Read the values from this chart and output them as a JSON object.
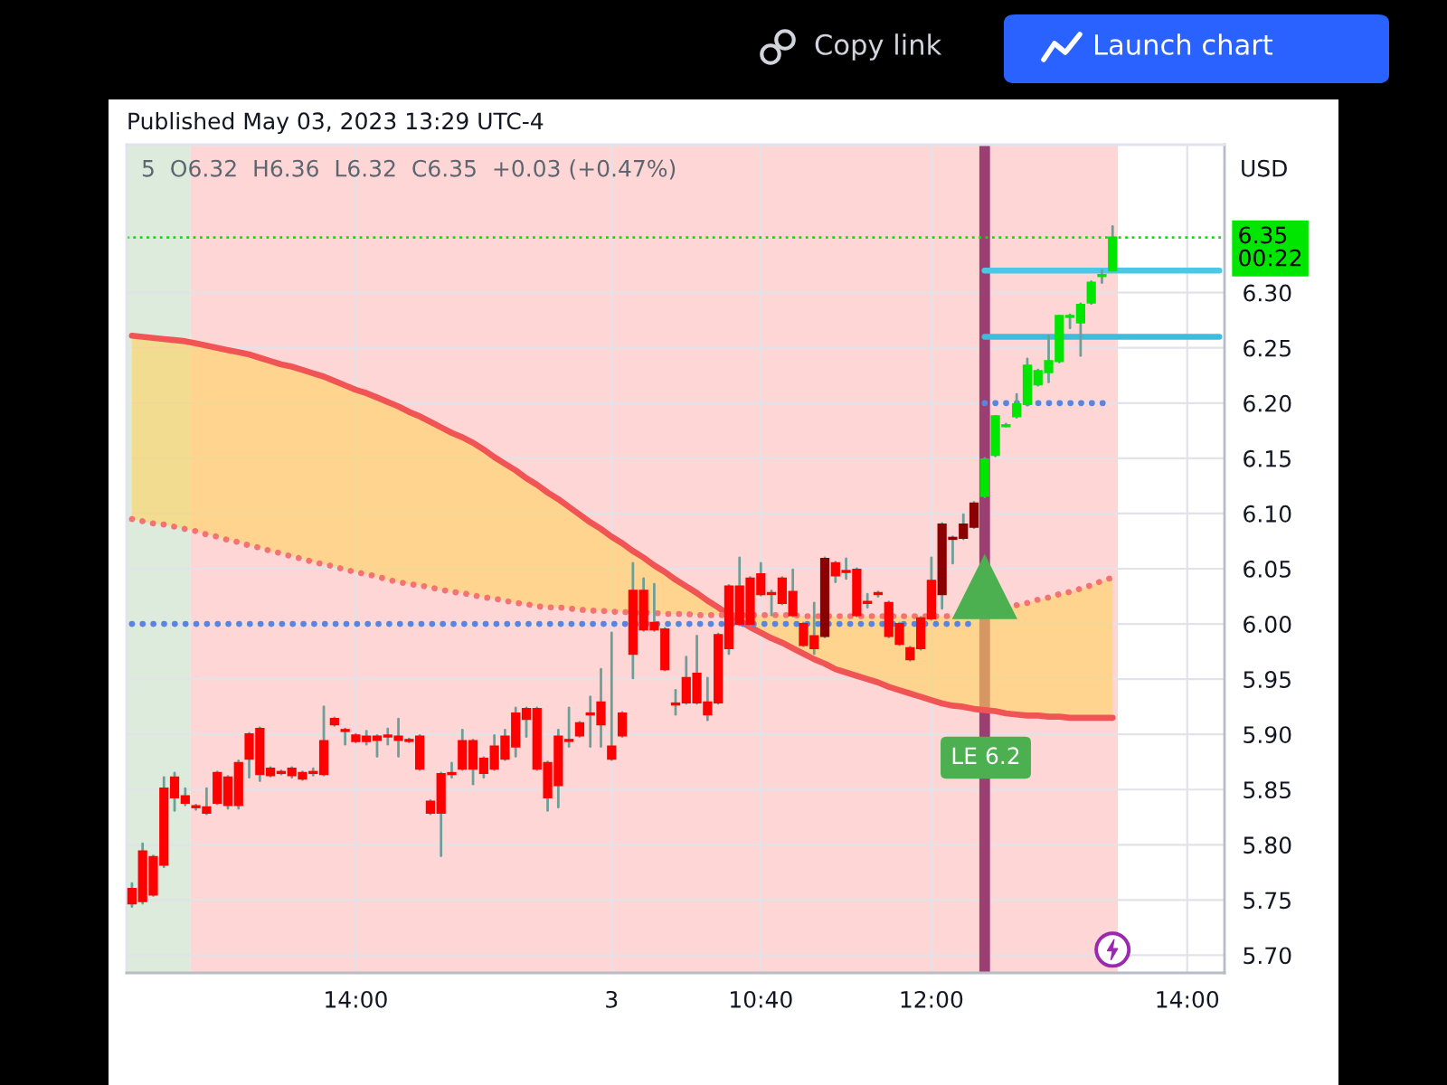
{
  "chart_data": {
    "type": "candlestick",
    "title": "Published May 03, 2023 13:29 UTC-4",
    "subtitle": "5  O6.32  H6.36  L6.32  C6.35  +0.03 (+0.47%)",
    "ylabel": "USD",
    "categories": [
      null,
      null,
      null,
      null,
      null,
      null,
      null,
      null,
      null,
      null,
      null,
      null,
      null,
      null,
      null,
      null,
      null,
      null,
      null,
      null,
      null,
      "14:00",
      null,
      null,
      null,
      null,
      null,
      null,
      null,
      null,
      null,
      null,
      null,
      null,
      null,
      null,
      null,
      null,
      null,
      null,
      null,
      null,
      null,
      null,
      null,
      "3",
      null,
      null,
      null,
      null,
      null,
      null,
      null,
      null,
      null,
      null,
      null,
      null,
      null,
      "10:40",
      null,
      null,
      null,
      null,
      null,
      null,
      null,
      null,
      null,
      null,
      null,
      null,
      null,
      null,
      null,
      "12:00",
      null,
      null,
      null,
      null,
      null,
      null,
      null,
      null,
      null,
      null,
      null,
      null,
      null,
      null,
      null,
      null,
      null,
      null,
      null,
      null,
      null,
      null,
      null,
      "14:00",
      null,
      null,
      null
    ],
    "ohlc": [
      [
        5.76,
        5.765,
        5.744,
        5.747
      ],
      [
        5.794,
        5.801,
        5.747,
        5.749
      ],
      [
        5.789,
        5.79,
        5.754,
        5.755
      ],
      [
        5.851,
        5.861,
        5.78,
        5.782
      ],
      [
        5.861,
        5.865,
        5.831,
        5.843
      ],
      [
        5.844,
        5.851,
        5.836,
        5.838
      ],
      [
        5.835,
        5.836,
        5.832,
        5.834
      ],
      [
        5.834,
        5.851,
        5.828,
        5.829
      ],
      [
        5.865,
        5.866,
        5.837,
        5.838
      ],
      [
        5.861,
        5.862,
        5.833,
        5.836
      ],
      [
        5.874,
        5.876,
        5.833,
        5.836
      ],
      [
        5.9,
        5.901,
        5.861,
        5.878
      ],
      [
        5.905,
        5.906,
        5.858,
        5.864
      ],
      [
        5.869,
        5.87,
        5.862,
        5.863
      ],
      [
        5.866,
        5.867,
        5.864,
        5.865
      ],
      [
        5.869,
        5.87,
        5.861,
        5.863
      ],
      [
        5.865,
        5.866,
        5.859,
        5.86
      ],
      [
        5.866,
        5.869,
        5.863,
        5.865
      ],
      [
        5.894,
        5.925,
        5.863,
        5.864
      ],
      [
        5.914,
        5.915,
        5.908,
        5.909
      ],
      [
        5.904,
        5.905,
        5.891,
        5.903
      ],
      [
        5.899,
        5.9,
        5.893,
        5.894
      ],
      [
        5.898,
        5.903,
        5.891,
        5.894
      ],
      [
        5.898,
        5.899,
        5.88,
        5.895
      ],
      [
        5.899,
        5.905,
        5.891,
        5.898
      ],
      [
        5.898,
        5.914,
        5.88,
        5.895
      ],
      [
        5.895,
        5.896,
        5.893,
        5.894
      ],
      [
        5.898,
        5.899,
        5.868,
        5.869
      ],
      [
        5.839,
        5.84,
        5.828,
        5.829
      ],
      [
        5.864,
        5.865,
        5.79,
        5.829
      ],
      [
        5.865,
        5.874,
        5.861,
        5.864
      ],
      [
        5.894,
        5.904,
        5.868,
        5.869
      ],
      [
        5.894,
        5.895,
        5.855,
        5.869
      ],
      [
        5.878,
        5.879,
        5.861,
        5.865
      ],
      [
        5.889,
        5.899,
        5.868,
        5.869
      ],
      [
        5.898,
        5.904,
        5.877,
        5.878
      ],
      [
        5.919,
        5.924,
        5.88,
        5.889
      ],
      [
        5.923,
        5.924,
        5.898,
        5.914
      ],
      [
        5.923,
        5.924,
        5.868,
        5.869
      ],
      [
        5.874,
        5.875,
        5.831,
        5.843
      ],
      [
        5.898,
        5.904,
        5.834,
        5.854
      ],
      [
        5.895,
        5.924,
        5.889,
        5.894
      ],
      [
        5.91,
        5.911,
        5.898,
        5.899
      ],
      [
        5.919,
        5.934,
        5.889,
        5.918
      ],
      [
        5.929,
        5.959,
        5.889,
        5.909
      ],
      [
        5.889,
        5.992,
        5.877,
        5.878
      ],
      [
        5.919,
        5.92,
        5.898,
        5.899
      ],
      [
        6.03,
        6.055,
        5.951,
        5.973
      ],
      [
        6.03,
        6.041,
        5.994,
        5.995
      ],
      [
        6.001,
        6.036,
        5.994,
        5.995
      ],
      [
        5.995,
        5.996,
        5.958,
        5.959
      ],
      [
        5.928,
        5.94,
        5.918,
        5.927
      ],
      [
        5.951,
        5.97,
        5.928,
        5.929
      ],
      [
        5.955,
        5.989,
        5.928,
        5.929
      ],
      [
        5.929,
        5.951,
        5.913,
        5.918
      ],
      [
        5.99,
        5.991,
        5.928,
        5.929
      ],
      [
        6.034,
        6.035,
        5.973,
        5.978
      ],
      [
        6.034,
        6.06,
        5.999,
        6.0
      ],
      [
        6.041,
        6.042,
        5.999,
        6.0
      ],
      [
        6.045,
        6.055,
        6.026,
        6.027
      ],
      [
        6.028,
        6.03,
        6.008,
        6.027
      ],
      [
        6.041,
        6.042,
        6.018,
        6.019
      ],
      [
        6.029,
        6.049,
        6.007,
        6.008
      ],
      [
        6.0,
        6.001,
        5.98,
        5.981
      ],
      [
        5.989,
        6.019,
        5.973,
        5.978
      ],
      [
        5.989,
        6.06,
        5.988,
        6.059
      ],
      [
        6.055,
        6.056,
        6.038,
        6.044
      ],
      [
        6.048,
        6.059,
        6.041,
        6.047
      ],
      [
        6.049,
        6.05,
        6.007,
        6.008
      ],
      [
        6.02,
        6.027,
        6.015,
        6.019
      ],
      [
        6.028,
        6.029,
        6.025,
        6.027
      ],
      [
        6.019,
        6.02,
        5.988,
        5.989
      ],
      [
        6.0,
        6.001,
        5.981,
        5.982
      ],
      [
        5.978,
        5.979,
        5.967,
        5.968
      ],
      [
        6.005,
        6.006,
        5.977,
        5.978
      ],
      [
        6.039,
        6.06,
        6.004,
        6.005
      ],
      [
        6.027,
        6.091,
        6.014,
        6.09
      ],
      [
        6.077,
        6.079,
        6.055,
        6.078
      ],
      [
        6.078,
        6.099,
        6.077,
        6.09
      ],
      [
        6.088,
        6.11,
        6.087,
        6.109
      ],
      [
        6.116,
        6.15,
        6.115,
        6.149
      ],
      [
        6.153,
        6.188,
        6.152,
        6.188
      ],
      [
        6.179,
        6.181,
        6.179,
        6.18
      ],
      [
        6.188,
        6.208,
        6.187,
        6.199
      ],
      [
        6.199,
        6.24,
        6.198,
        6.234
      ],
      [
        6.217,
        6.23,
        6.216,
        6.229
      ],
      [
        6.228,
        6.261,
        6.219,
        6.238
      ],
      [
        6.238,
        6.279,
        6.237,
        6.279
      ],
      [
        6.278,
        6.28,
        6.268,
        6.279
      ],
      [
        6.273,
        6.29,
        6.243,
        6.289
      ],
      [
        6.291,
        6.31,
        6.29,
        6.309
      ],
      [
        6.315,
        6.32,
        6.309,
        6.316
      ],
      [
        6.32,
        6.36,
        6.32,
        6.35
      ],
      null,
      null,
      null,
      null,
      null,
      null,
      null,
      null,
      null,
      null
    ],
    "colors": [
      "#ff0000",
      "#ff0000",
      "#ff0000",
      "#ff0000",
      "#ff0000",
      "#ff0000",
      "#ff0000",
      "#ff0000",
      "#ff0000",
      "#ff0000",
      "#ff0000",
      "#ff0000",
      "#ff0000",
      "#ff0000",
      "#ff0000",
      "#ff0000",
      "#ff0000",
      "#ff0000",
      "#ff0000",
      "#ff0000",
      "#ff0000",
      "#ff0000",
      "#ff0000",
      "#ff0000",
      "#ff0000",
      "#ff0000",
      "#ff0000",
      "#ff0000",
      "#ff0000",
      "#ff0000",
      "#ff0000",
      "#ff0000",
      "#ff0000",
      "#ff0000",
      "#ff0000",
      "#ff0000",
      "#ff0000",
      "#ff0000",
      "#ff0000",
      "#ff0000",
      "#ff0000",
      "#ff0000",
      "#ff0000",
      "#ff0000",
      "#ff0000",
      "#ff0000",
      "#ff0000",
      "#ff0000",
      "#ff0000",
      "#ff0000",
      "#ff0000",
      "#ff0000",
      "#ff0000",
      "#ff0000",
      "#ff0000",
      "#ff0000",
      "#ff0000",
      "#ff0000",
      "#ff0000",
      "#ff0000",
      "#ff0000",
      "#ff0000",
      "#ff0000",
      "#ff0000",
      "#ff0000",
      "#8b0000",
      "#ff0000",
      "#ff0000",
      "#ff0000",
      "#ff0000",
      "#ff0000",
      "#ff0000",
      "#ff0000",
      "#ff0000",
      "#ff0000",
      "#ff0000",
      "#8b0000",
      "#8b0000",
      "#8b0000",
      "#8b0000",
      "#00e600",
      "#00e600",
      "#00e600",
      "#00e600",
      "#00e600",
      "#00e600",
      "#00e600",
      "#00e600",
      "#00e600",
      "#00e600",
      "#00e600",
      "#00e600",
      "#00e600",
      null,
      null,
      null,
      null,
      null,
      null,
      null,
      null,
      null,
      null
    ],
    "series": [
      {
        "type": "line",
        "color": "#f05454",
        "values": [
          6.261,
          6.26,
          6.259,
          6.258,
          6.257,
          6.256,
          6.254,
          6.252,
          6.25,
          6.248,
          6.246,
          6.244,
          6.241,
          6.238,
          6.235,
          6.233,
          6.23,
          6.227,
          6.224,
          6.22,
          6.216,
          6.212,
          6.209,
          6.205,
          6.201,
          6.197,
          6.192,
          6.188,
          6.183,
          6.178,
          6.173,
          6.169,
          6.164,
          6.158,
          6.151,
          6.145,
          6.139,
          6.132,
          6.126,
          6.119,
          6.113,
          6.106,
          6.099,
          6.092,
          6.086,
          6.079,
          6.073,
          6.066,
          6.06,
          6.053,
          6.047,
          6.04,
          6.034,
          6.028,
          6.021,
          6.015,
          6.008,
          6.003,
          5.997,
          5.992,
          5.987,
          5.983,
          5.978,
          5.973,
          5.968,
          5.964,
          5.959,
          5.956,
          5.953,
          5.95,
          5.947,
          5.943,
          5.94,
          5.937,
          5.934,
          5.931,
          5.928,
          5.926,
          5.925,
          5.923,
          5.922,
          5.921,
          5.919,
          5.918,
          5.917,
          5.917,
          5.916,
          5.916,
          5.915,
          5.915,
          5.915,
          5.915,
          5.915,
          null,
          null,
          null,
          null,
          null,
          null,
          null,
          null,
          null,
          null
        ],
        "upper": [
          6.261,
          6.26,
          6.259,
          6.258,
          6.257,
          6.256,
          6.254,
          6.252,
          6.25,
          6.248,
          6.246,
          6.244,
          6.241,
          6.238,
          6.235,
          6.233,
          6.23,
          6.227,
          6.224,
          6.22,
          6.216,
          6.212,
          6.209,
          6.205,
          6.201,
          6.197,
          6.192,
          6.188,
          6.183,
          6.178,
          6.173,
          6.169,
          6.164,
          6.158,
          6.151,
          6.145,
          6.139,
          6.132,
          6.126,
          6.119,
          6.113,
          6.106,
          6.099,
          6.092,
          6.086,
          6.079,
          6.073,
          6.066,
          6.06,
          6.053,
          6.047,
          6.04,
          6.034,
          6.028,
          6.021,
          6.015,
          6.008,
          6.003,
          5.997,
          5.992,
          5.987,
          5.983,
          5.978,
          5.973,
          5.968,
          5.964,
          5.959,
          5.956,
          5.953,
          5.95,
          5.947,
          5.943,
          5.94,
          5.937,
          5.934,
          5.931,
          5.928,
          5.926,
          5.925,
          5.923,
          5.922,
          5.921,
          5.919,
          5.918,
          5.917,
          5.917,
          5.916,
          5.916,
          5.915,
          5.915,
          5.915,
          5.915,
          5.915,
          null,
          null,
          null,
          null,
          null,
          null,
          null,
          null,
          null,
          null
        ],
        "lower": [
          6.095,
          6.093,
          6.091,
          6.09,
          6.088,
          6.086,
          6.084,
          6.081,
          6.079,
          6.076,
          6.074,
          6.071,
          6.069,
          6.066,
          6.064,
          6.061,
          6.059,
          6.056,
          6.054,
          6.052,
          6.049,
          6.047,
          6.045,
          6.043,
          6.04,
          6.038,
          6.036,
          6.035,
          6.033,
          6.031,
          6.029,
          6.028,
          6.026,
          6.024,
          6.023,
          6.021,
          6.019,
          6.018,
          6.016,
          6.015,
          6.015,
          6.014,
          6.013,
          6.012,
          6.012,
          6.011,
          6.011,
          6.01,
          6.01,
          6.01,
          6.009,
          6.009,
          6.009,
          6.008,
          6.008,
          6.008,
          6.008,
          6.008,
          6.008,
          6.008,
          6.008,
          6.008,
          6.008,
          6.007,
          6.007,
          6.007,
          6.007,
          6.007,
          6.007,
          6.007,
          6.007,
          6.007,
          6.007,
          6.007,
          6.007,
          6.007,
          6.007,
          6.007,
          6.007,
          6.007,
          6.009,
          6.011,
          6.014,
          6.017,
          6.019,
          6.022,
          6.024,
          6.027,
          6.029,
          6.032,
          6.035,
          6.039,
          6.042,
          null,
          null,
          null,
          null,
          null,
          null,
          null,
          null,
          null,
          null
        ]
      },
      {
        "type": "line",
        "line_style": "dotted",
        "color": "#f47272",
        "values": [
          6.095,
          6.093,
          6.091,
          6.09,
          6.088,
          6.086,
          6.084,
          6.081,
          6.079,
          6.076,
          6.074,
          6.071,
          6.069,
          6.066,
          6.064,
          6.061,
          6.059,
          6.056,
          6.054,
          6.052,
          6.049,
          6.047,
          6.045,
          6.043,
          6.04,
          6.038,
          6.036,
          6.035,
          6.033,
          6.031,
          6.029,
          6.028,
          6.026,
          6.024,
          6.023,
          6.021,
          6.019,
          6.018,
          6.016,
          6.015,
          6.015,
          6.014,
          6.013,
          6.012,
          6.012,
          6.011,
          6.011,
          6.01,
          6.01,
          6.01,
          6.009,
          6.009,
          6.009,
          6.008,
          6.008,
          6.008,
          6.008,
          6.008,
          6.008,
          6.008,
          6.008,
          6.008,
          6.008,
          6.007,
          6.007,
          6.007,
          6.007,
          6.007,
          6.007,
          6.007,
          6.007,
          6.007,
          6.007,
          6.007,
          6.007,
          6.007,
          6.007,
          6.007,
          null,
          null,
          null,
          null,
          null,
          6.017,
          6.019,
          6.022,
          6.024,
          6.027,
          6.029,
          6.032,
          6.035,
          6.039,
          6.042,
          null,
          null,
          null,
          null,
          null,
          null,
          null,
          null,
          null,
          null
        ]
      },
      {
        "type": "line",
        "line_style": "dotted",
        "color": "#5b84e0",
        "values": [
          6.0,
          6.0,
          6.0,
          6.0,
          6.0,
          6.0,
          6.0,
          6.0,
          6.0,
          6.0,
          6.0,
          6.0,
          6.0,
          6.0,
          6.0,
          6.0,
          6.0,
          6.0,
          6.0,
          6.0,
          6.0,
          6.0,
          6.0,
          6.0,
          6.0,
          6.0,
          6.0,
          6.0,
          6.0,
          6.0,
          6.0,
          6.0,
          6.0,
          6.0,
          6.0,
          6.0,
          6.0,
          6.0,
          6.0,
          6.0,
          6.0,
          6.0,
          6.0,
          6.0,
          6.0,
          6.0,
          6.0,
          6.0,
          6.0,
          6.0,
          6.0,
          6.0,
          6.0,
          6.0,
          6.0,
          6.0,
          6.0,
          6.0,
          6.0,
          6.0,
          6.0,
          6.0,
          6.0,
          6.0,
          6.0,
          6.0,
          6.0,
          6.0,
          6.0,
          6.0,
          6.0,
          6.0,
          6.0,
          6.0,
          6.0,
          6.0,
          6.0,
          6.0,
          6.0,
          6.0,
          null,
          null,
          null,
          null,
          null,
          null,
          null,
          null,
          null,
          null,
          null,
          null,
          null,
          null,
          null,
          null,
          null,
          null,
          null,
          null,
          null,
          null,
          null
        ]
      },
      {
        "type": "line",
        "line_style": "dotted",
        "color": "#5b84e0",
        "values": [
          null,
          null,
          null,
          null,
          null,
          null,
          null,
          null,
          null,
          null,
          null,
          null,
          null,
          null,
          null,
          null,
          null,
          null,
          null,
          null,
          null,
          null,
          null,
          null,
          null,
          null,
          null,
          null,
          null,
          null,
          null,
          null,
          null,
          null,
          null,
          null,
          null,
          null,
          null,
          null,
          null,
          null,
          null,
          null,
          null,
          null,
          null,
          null,
          null,
          null,
          null,
          null,
          null,
          null,
          null,
          null,
          null,
          null,
          null,
          null,
          null,
          null,
          null,
          null,
          null,
          null,
          null,
          null,
          null,
          null,
          null,
          null,
          null,
          null,
          null,
          null,
          null,
          null,
          null,
          null,
          6.2,
          6.2,
          6.2,
          6.2,
          6.2,
          6.2,
          6.2,
          6.2,
          6.2,
          6.2,
          6.2,
          6.2,
          6.2,
          null,
          null,
          null,
          null,
          null,
          null,
          null,
          null,
          null,
          null
        ]
      },
      {
        "type": "line",
        "color": "#4cc8e6",
        "values": [
          null,
          null,
          null,
          null,
          null,
          null,
          null,
          null,
          null,
          null,
          null,
          null,
          null,
          null,
          null,
          null,
          null,
          null,
          null,
          null,
          null,
          null,
          null,
          null,
          null,
          null,
          null,
          null,
          null,
          null,
          null,
          null,
          null,
          null,
          null,
          null,
          null,
          null,
          null,
          null,
          null,
          null,
          null,
          null,
          null,
          null,
          null,
          null,
          null,
          null,
          null,
          null,
          null,
          null,
          null,
          null,
          null,
          null,
          null,
          null,
          null,
          null,
          null,
          null,
          null,
          null,
          null,
          null,
          null,
          null,
          null,
          null,
          null,
          null,
          null,
          null,
          null,
          null,
          null,
          null,
          6.32,
          6.32,
          6.32,
          6.32,
          6.32,
          6.32,
          6.32,
          6.32,
          6.32,
          6.32,
          6.32,
          6.32,
          6.32,
          6.32,
          6.32,
          6.32,
          6.32,
          6.32,
          6.32,
          6.32,
          6.32,
          6.32,
          6.32
        ]
      },
      {
        "type": "line",
        "color": "#3fbcdc",
        "values": [
          null,
          null,
          null,
          null,
          null,
          null,
          null,
          null,
          null,
          null,
          null,
          null,
          null,
          null,
          null,
          null,
          null,
          null,
          null,
          null,
          null,
          null,
          null,
          null,
          null,
          null,
          null,
          null,
          null,
          null,
          null,
          null,
          null,
          null,
          null,
          null,
          null,
          null,
          null,
          null,
          null,
          null,
          null,
          null,
          null,
          null,
          null,
          null,
          null,
          null,
          null,
          null,
          null,
          null,
          null,
          null,
          null,
          null,
          null,
          null,
          null,
          null,
          null,
          null,
          null,
          null,
          null,
          null,
          null,
          null,
          null,
          null,
          null,
          null,
          null,
          null,
          null,
          null,
          null,
          null,
          6.26,
          6.26,
          6.26,
          6.26,
          6.26,
          6.26,
          6.26,
          6.26,
          6.26,
          6.26,
          6.26,
          6.26,
          6.26,
          6.26,
          6.26,
          6.26,
          6.26,
          6.26,
          6.26,
          6.26,
          6.26,
          6.26,
          6.26
        ]
      },
      {
        "type": "scatter",
        "marker": "triangle",
        "color": "#4caf50",
        "values": [
          null,
          null,
          null,
          null,
          null,
          null,
          null,
          null,
          null,
          null,
          null,
          null,
          null,
          null,
          null,
          null,
          null,
          null,
          null,
          null,
          null,
          null,
          null,
          null,
          null,
          null,
          null,
          null,
          null,
          null,
          null,
          null,
          null,
          null,
          null,
          null,
          null,
          null,
          null,
          null,
          null,
          null,
          null,
          null,
          null,
          null,
          null,
          null,
          null,
          null,
          null,
          null,
          null,
          null,
          null,
          null,
          null,
          null,
          null,
          null,
          null,
          null,
          null,
          null,
          null,
          null,
          null,
          null,
          null,
          null,
          null,
          null,
          null,
          null,
          null,
          null,
          null,
          null,
          null,
          null,
          6.034,
          null,
          null,
          null,
          null,
          null,
          null,
          null,
          null,
          null,
          null,
          null,
          null,
          null,
          null,
          null,
          null,
          null,
          null,
          null,
          null,
          null,
          null
        ]
      }
    ],
    "ylim": [
      5.684,
      6.434
    ],
    "yticks": [
      {
        "value": 5.7,
        "label": "5.70"
      },
      5.75,
      {
        "value": 5.8,
        "label": "5.80"
      },
      5.85,
      {
        "value": 5.9,
        "label": "5.90"
      },
      5.95,
      {
        "value": 6.0,
        "label": "6.00"
      },
      6.05,
      {
        "value": 6.1,
        "label": "6.10"
      },
      6.15,
      {
        "value": 6.2,
        "label": "6.20"
      },
      6.25,
      {
        "value": 6.3,
        "label": "6.30"
      }
    ],
    "grid": true,
    "ref_lines": [
      {
        "axis": "y",
        "value": 6.35,
        "label": "6.35\n00:22",
        "color": "#00e600",
        "line_style": "dotted"
      }
    ],
    "annotations": [
      "Copy link",
      "Launch chart",
      "LE 6.2"
    ]
  }
}
